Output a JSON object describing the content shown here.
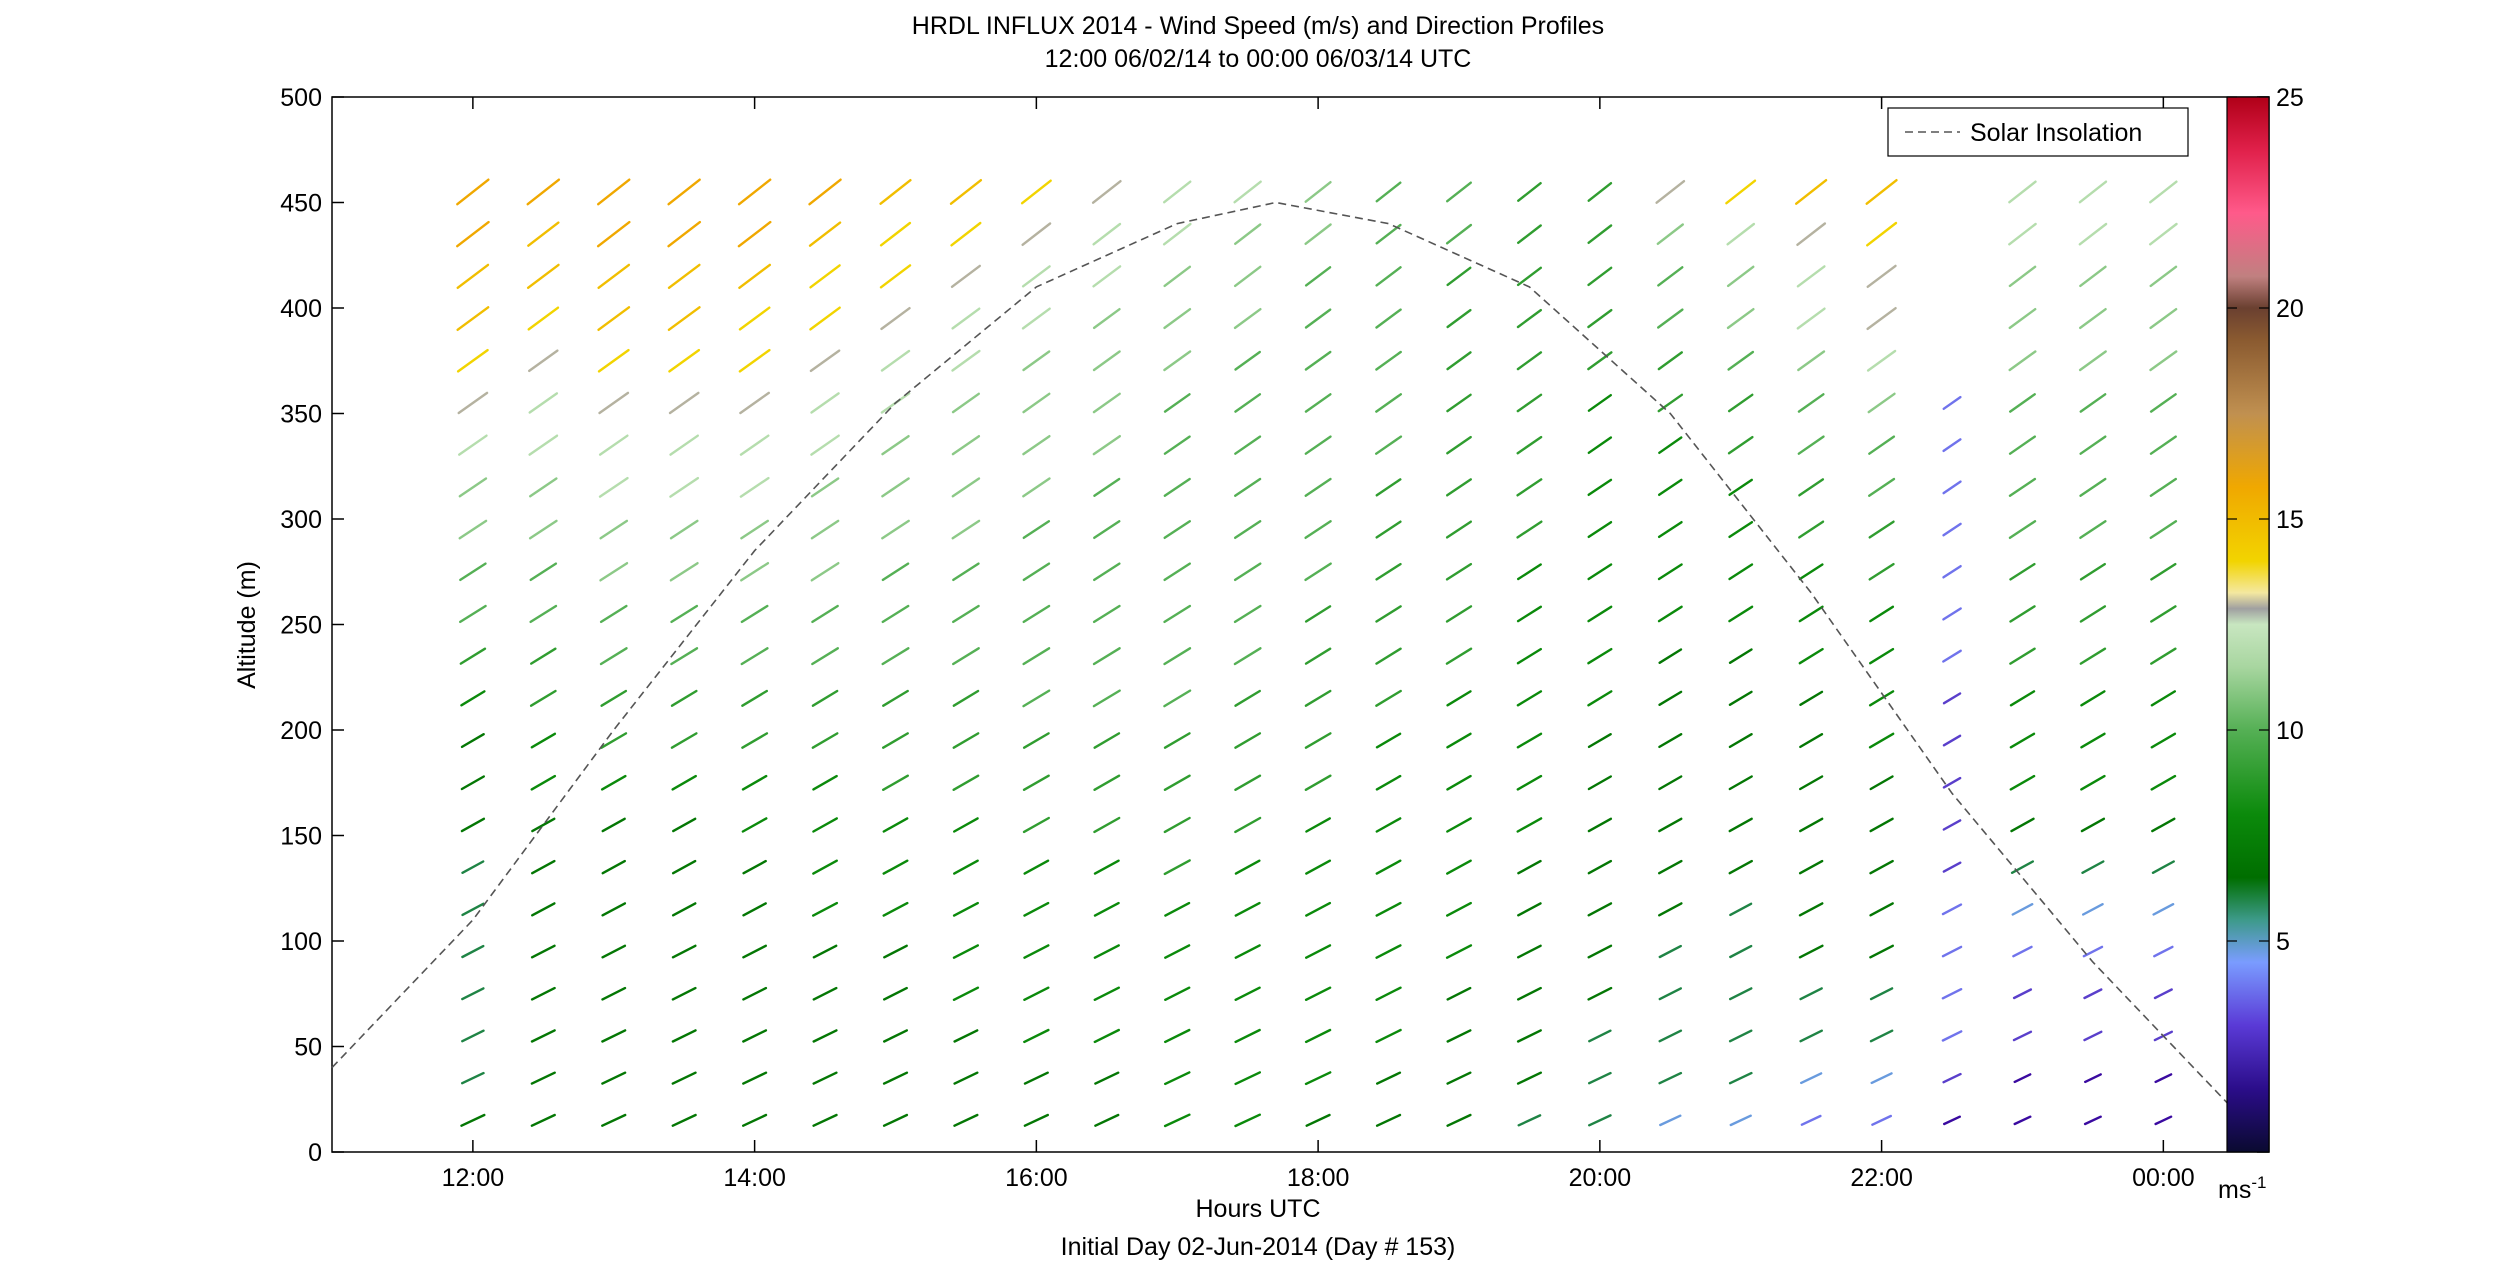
{
  "chart_data": {
    "type": "quiver",
    "title": "HRDL INFLUX 2014 - Wind Speed (m/s) and Direction Profiles",
    "subtitle": "12:00 06/02/14 to 00:00 06/03/14  UTC",
    "xlabel": "Hours UTC",
    "xlabel2": "Initial Day 02-Jun-2014 (Day # 153)",
    "ylabel": "Altitude (m)",
    "xlim_hours": [
      11.0,
      24.75
    ],
    "ylim": [
      0,
      500
    ],
    "x_ticks": [
      {
        "hour": 12,
        "label": "12:00"
      },
      {
        "hour": 14,
        "label": "14:00"
      },
      {
        "hour": 16,
        "label": "16:00"
      },
      {
        "hour": 18,
        "label": "18:00"
      },
      {
        "hour": 20,
        "label": "20:00"
      },
      {
        "hour": 22,
        "label": "22:00"
      },
      {
        "hour": 24,
        "label": "00:00"
      }
    ],
    "y_ticks": [
      0,
      50,
      100,
      150,
      200,
      250,
      300,
      350,
      400,
      450,
      500
    ],
    "grid": false,
    "legend": {
      "label": "Solar Insolation",
      "position": "top-right"
    },
    "colorbar": {
      "ticks": [
        5,
        10,
        15,
        20,
        25
      ],
      "range": [
        0,
        25
      ],
      "unit_label": "ms",
      "unit_exp": "-1"
    },
    "profile_times_hours": [
      12.0,
      12.5,
      13.0,
      13.5,
      14.0,
      14.5,
      15.0,
      15.5,
      16.0,
      16.5,
      17.0,
      17.5,
      18.0,
      18.5,
      19.0,
      19.5,
      20.0,
      20.5,
      21.0,
      21.5,
      22.0,
      22.5,
      23.0,
      23.5,
      24.0
    ],
    "wind_speed_ms": [
      [
        7,
        6,
        6,
        6,
        6,
        6,
        6,
        7,
        7,
        7,
        8,
        9,
        10,
        10,
        11,
        11,
        12,
        13,
        14,
        15,
        15,
        16,
        16
      ],
      [
        7,
        7,
        7,
        7,
        7,
        7,
        7,
        7,
        8,
        8,
        9,
        9,
        10,
        10,
        11,
        11,
        12,
        12,
        13,
        14,
        15,
        15,
        16
      ],
      [
        7,
        7,
        7,
        7,
        7,
        7,
        7,
        7,
        8,
        9,
        9,
        10,
        10,
        11,
        11,
        12,
        12,
        13,
        14,
        15,
        15,
        16,
        16
      ],
      [
        7,
        7,
        7,
        7,
        7,
        7,
        7,
        7,
        8,
        9,
        9,
        10,
        10,
        11,
        11,
        12,
        12,
        13,
        14,
        15,
        15,
        16,
        16
      ],
      [
        7,
        7,
        7,
        7,
        7,
        7,
        7,
        8,
        8,
        9,
        9,
        10,
        10,
        11,
        11,
        12,
        12,
        13,
        14,
        14,
        15,
        16,
        16
      ],
      [
        7,
        7,
        7,
        7,
        7,
        8,
        8,
        8,
        8,
        9,
        9,
        10,
        10,
        11,
        11,
        11,
        12,
        12,
        13,
        14,
        14,
        15,
        16
      ],
      [
        7,
        7,
        7,
        7,
        7,
        8,
        8,
        8,
        9,
        9,
        9,
        10,
        10,
        10,
        11,
        11,
        11,
        12,
        12,
        13,
        14,
        14,
        15
      ],
      [
        7,
        7,
        7,
        8,
        8,
        8,
        8,
        8,
        9,
        9,
        9,
        10,
        10,
        10,
        11,
        11,
        11,
        11,
        12,
        12,
        13,
        14,
        15
      ],
      [
        7,
        7,
        8,
        8,
        8,
        8,
        8,
        9,
        9,
        9,
        10,
        10,
        10,
        10,
        10,
        11,
        11,
        11,
        11,
        12,
        12,
        13,
        14
      ],
      [
        7,
        7,
        8,
        8,
        8,
        8,
        8,
        9,
        9,
        9,
        10,
        10,
        10,
        10,
        10,
        10,
        11,
        11,
        11,
        11,
        12,
        12,
        13
      ],
      [
        8,
        8,
        8,
        8,
        8,
        8,
        9,
        9,
        9,
        9,
        10,
        10,
        10,
        10,
        10,
        10,
        10,
        10,
        11,
        11,
        11,
        12,
        12
      ],
      [
        8,
        8,
        8,
        8,
        8,
        8,
        8,
        9,
        9,
        9,
        9,
        10,
        10,
        10,
        10,
        10,
        10,
        10,
        10,
        11,
        11,
        11,
        12
      ],
      [
        7,
        8,
        8,
        8,
        8,
        8,
        8,
        8,
        9,
        9,
        9,
        9,
        9,
        10,
        10,
        10,
        10,
        10,
        10,
        10,
        10,
        11,
        11
      ],
      [
        7,
        7,
        8,
        8,
        8,
        8,
        8,
        8,
        8,
        8,
        9,
        9,
        9,
        9,
        9,
        9,
        10,
        10,
        10,
        10,
        10,
        10,
        10
      ],
      [
        7,
        7,
        7,
        7,
        8,
        8,
        8,
        8,
        8,
        8,
        8,
        9,
        9,
        9,
        9,
        9,
        9,
        9,
        9,
        9,
        9,
        10,
        10
      ],
      [
        6,
        7,
        7,
        7,
        7,
        7,
        7,
        8,
        8,
        8,
        8,
        8,
        8,
        8,
        9,
        9,
        9,
        9,
        9,
        9,
        9,
        9,
        9
      ],
      [
        6,
        6,
        6,
        7,
        7,
        7,
        7,
        7,
        7,
        7,
        8,
        8,
        8,
        8,
        8,
        8,
        8,
        8,
        9,
        9,
        9,
        9,
        9
      ],
      [
        5,
        6,
        6,
        6,
        6,
        7,
        7,
        7,
        7,
        7,
        7,
        7,
        8,
        8,
        8,
        8,
        8,
        9,
        9,
        10,
        10,
        11,
        13
      ],
      [
        5,
        6,
        6,
        6,
        6,
        6,
        7,
        7,
        7,
        7,
        7,
        7,
        8,
        8,
        8,
        8,
        9,
        9,
        10,
        11,
        11,
        12,
        14
      ],
      [
        4,
        5,
        6,
        6,
        7,
        7,
        7,
        7,
        7,
        7,
        7,
        8,
        8,
        8,
        9,
        9,
        10,
        10,
        11,
        12,
        12,
        13,
        15
      ],
      [
        4,
        5,
        6,
        6,
        7,
        7,
        7,
        7,
        7,
        8,
        8,
        8,
        8,
        9,
        9,
        10,
        10,
        11,
        12,
        13,
        13,
        14,
        15
      ],
      [
        2,
        3,
        4,
        4,
        4,
        4,
        3,
        3,
        3,
        3,
        3,
        4,
        4,
        4,
        4,
        4,
        4,
        4
      ],
      [
        2,
        2,
        3,
        3,
        4,
        5,
        6,
        7,
        8,
        8,
        8,
        9,
        9,
        9,
        10,
        10,
        10,
        10,
        11,
        11,
        11,
        12,
        12
      ],
      [
        2,
        2,
        3,
        3,
        4,
        5,
        6,
        7,
        8,
        8,
        8,
        9,
        9,
        9,
        10,
        10,
        10,
        10,
        11,
        11,
        11,
        12,
        12
      ],
      [
        2,
        2,
        3,
        3,
        4,
        5,
        6,
        7,
        8,
        8,
        8,
        9,
        9,
        9,
        10,
        10,
        10,
        10,
        11,
        11,
        11,
        12,
        12
      ]
    ],
    "solar_insolation_curve_hours": [
      11.0,
      11.5,
      12.0,
      13.0,
      14.0,
      15.0,
      16.0,
      17.0,
      17.7,
      18.5,
      19.5,
      20.5,
      21.5,
      22.5,
      23.5,
      24.5,
      24.75
    ],
    "solar_insolation_curve_alt": [
      40,
      75,
      110,
      200,
      285,
      355,
      410,
      440,
      450,
      440,
      410,
      350,
      265,
      170,
      90,
      20,
      0
    ]
  }
}
